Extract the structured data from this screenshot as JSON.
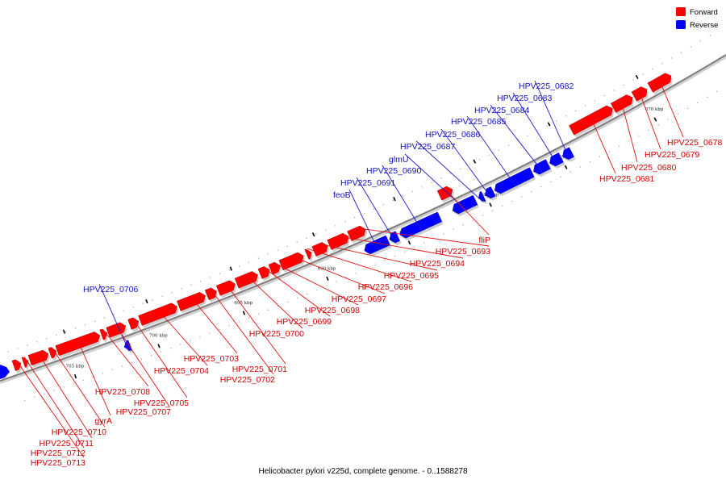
{
  "colors": {
    "forward": "#ff0000",
    "reverse": "#0000ff",
    "forward_line": "#e01010",
    "reverse_line": "#1a1acc",
    "backbone": "#8a8a8a"
  },
  "legend": {
    "forward": "Forward",
    "reverse": "Reverse"
  },
  "caption": "Helicobacter pylori v225d, complete genome. - 0..1588278",
  "kbp_marks": [
    "670 kbp",
    "675 kbp",
    "680 kbp",
    "685 kbp",
    "690 kbp",
    "695 kbp",
    "700 kbp",
    "705 kbp"
  ],
  "genes": [
    {
      "name": "HPV225_0678",
      "strand": "forward"
    },
    {
      "name": "HPV225_0679",
      "strand": "forward"
    },
    {
      "name": "HPV225_0680",
      "strand": "forward"
    },
    {
      "name": "HPV225_0681",
      "strand": "forward"
    },
    {
      "name": "HPV225_0682",
      "strand": "reverse"
    },
    {
      "name": "HPV225_0683",
      "strand": "reverse"
    },
    {
      "name": "HPV225_0684",
      "strand": "reverse"
    },
    {
      "name": "HPV225_0685",
      "strand": "reverse"
    },
    {
      "name": "HPV225_0686",
      "strand": "reverse"
    },
    {
      "name": "HPV225_0687",
      "strand": "reverse"
    },
    {
      "name": "glmU",
      "strand": "reverse"
    },
    {
      "name": "HPV225_0690",
      "strand": "reverse"
    },
    {
      "name": "HPV225_0691",
      "strand": "reverse"
    },
    {
      "name": "feoB",
      "strand": "reverse"
    },
    {
      "name": "fliP",
      "strand": "forward"
    },
    {
      "name": "HPV225_0693",
      "strand": "forward"
    },
    {
      "name": "HPV225_0694",
      "strand": "forward"
    },
    {
      "name": "HPV225_0695",
      "strand": "forward"
    },
    {
      "name": "HPV225_0696",
      "strand": "forward"
    },
    {
      "name": "HPV225_0697",
      "strand": "forward"
    },
    {
      "name": "HPV225_0698",
      "strand": "forward"
    },
    {
      "name": "HPV225_0699",
      "strand": "forward"
    },
    {
      "name": "HPV225_0700",
      "strand": "forward"
    },
    {
      "name": "HPV225_0701",
      "strand": "forward"
    },
    {
      "name": "HPV225_0702",
      "strand": "forward"
    },
    {
      "name": "HPV225_0703",
      "strand": "forward"
    },
    {
      "name": "HPV225_0704",
      "strand": "forward"
    },
    {
      "name": "HPV225_0705",
      "strand": "forward"
    },
    {
      "name": "HPV225_0706",
      "strand": "reverse"
    },
    {
      "name": "HPV225_0707",
      "strand": "forward"
    },
    {
      "name": "HPV225_0708",
      "strand": "forward"
    },
    {
      "name": "gyrA",
      "strand": "forward"
    },
    {
      "name": "HPV225_0710",
      "strand": "forward"
    },
    {
      "name": "HPV225_0711",
      "strand": "forward"
    },
    {
      "name": "HPV225_0712",
      "strand": "forward"
    },
    {
      "name": "HPV225_0713",
      "strand": "forward"
    }
  ]
}
